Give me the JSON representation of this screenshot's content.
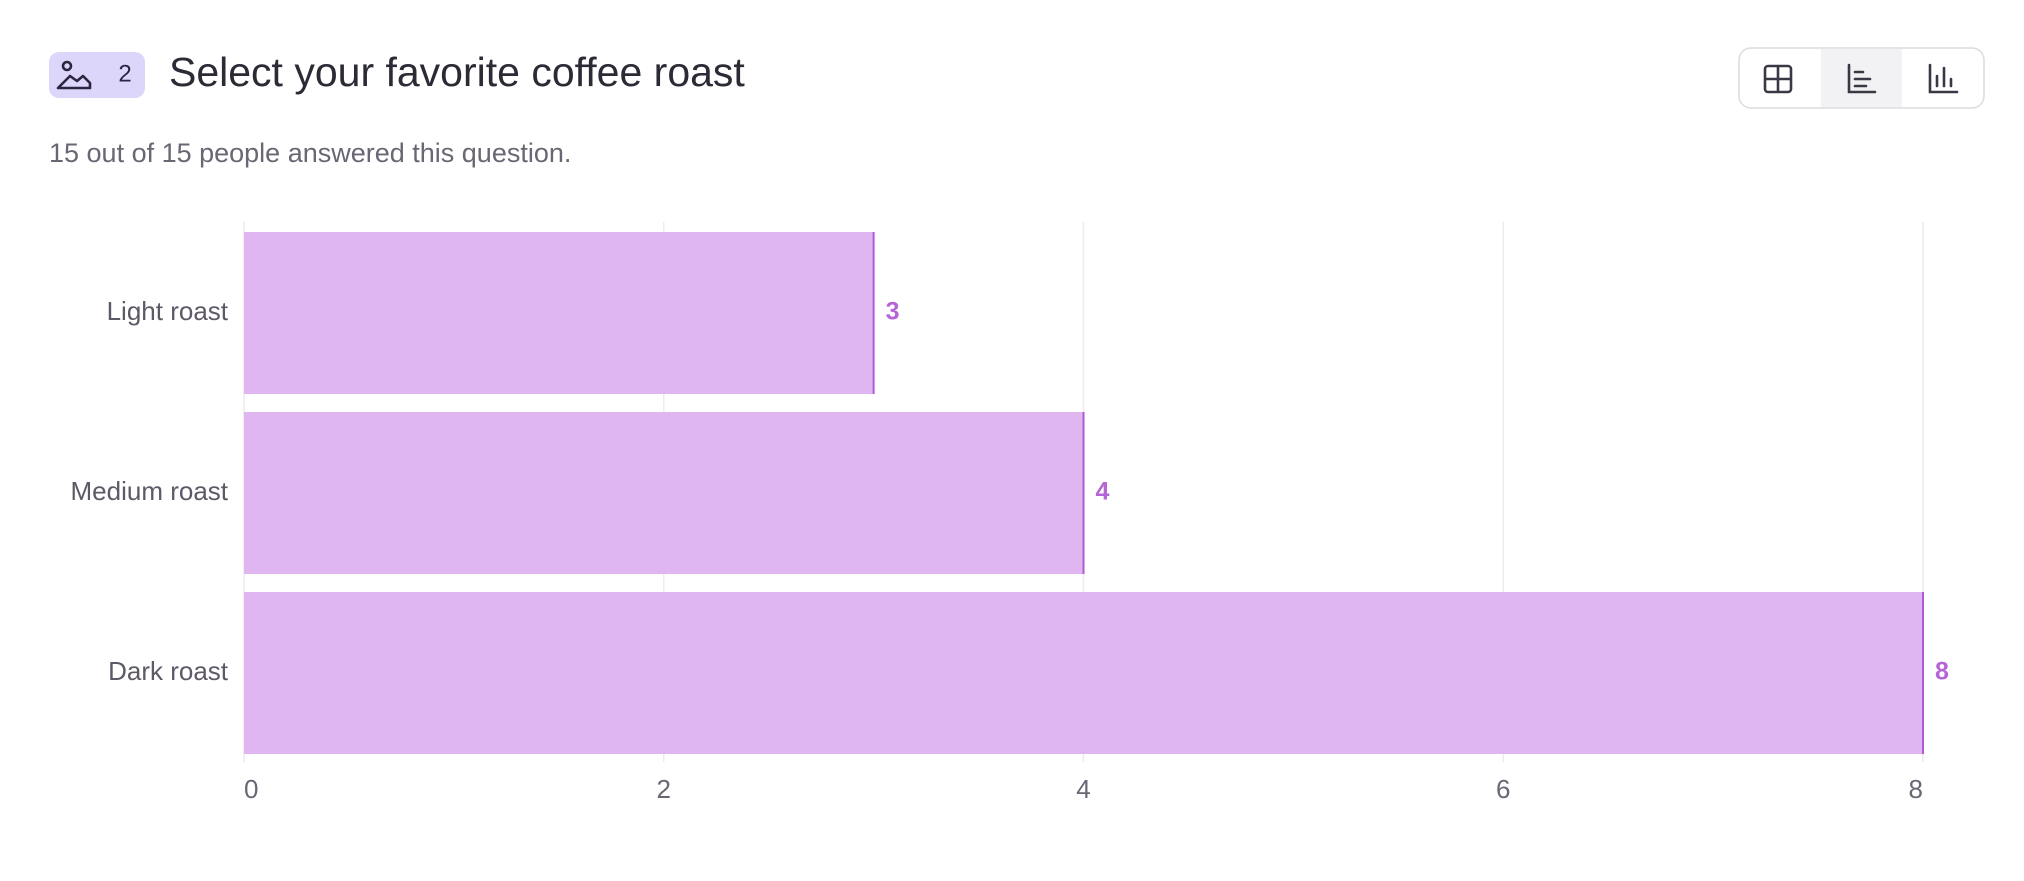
{
  "header": {
    "badge": "2"
  },
  "chart_data": {
    "type": "bar",
    "orientation": "horizontal",
    "title": "Select your favorite coffee roast",
    "subtitle": "15 out of 15 people answered this question.",
    "categories": [
      "Light roast",
      "Medium roast",
      "Dark roast"
    ],
    "values": [
      3,
      4,
      8
    ],
    "color": "#dfb6f0",
    "edge_color": "#b05bd6",
    "label_color": "#b565d6",
    "xlim": [
      0,
      8
    ],
    "xticks": [
      0,
      2,
      4,
      6,
      8
    ],
    "grid": true
  }
}
